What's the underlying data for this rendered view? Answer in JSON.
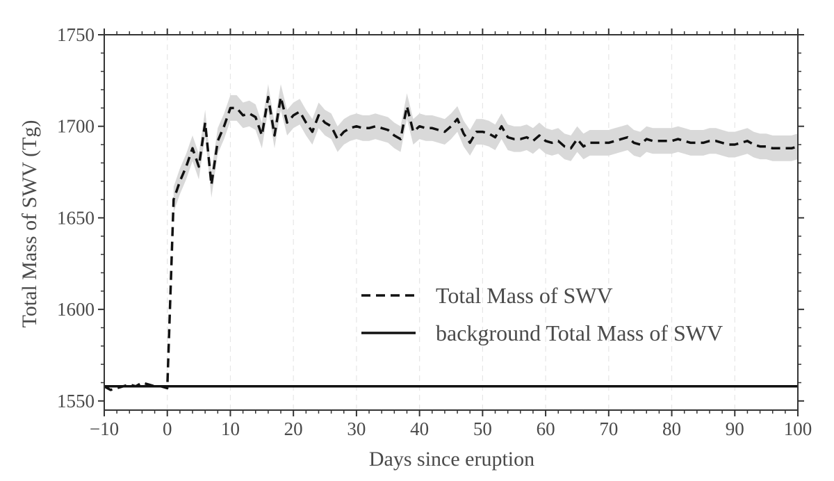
{
  "chart_data": {
    "type": "line",
    "xlabel": "Days since eruption",
    "ylabel": "Total Mass of SWV (Tg)",
    "xlim": [
      -10,
      100
    ],
    "ylim": [
      1545,
      1750
    ],
    "x_ticks": [
      -10,
      0,
      10,
      20,
      30,
      40,
      50,
      60,
      70,
      80,
      90,
      100
    ],
    "x_tick_labels": [
      "−10",
      "0",
      "10",
      "20",
      "30",
      "40",
      "50",
      "60",
      "70",
      "80",
      "90",
      "100"
    ],
    "y_ticks": [
      1550,
      1600,
      1650,
      1700,
      1750
    ],
    "y_tick_labels": [
      "1550",
      "1600",
      "1650",
      "1700",
      "1750"
    ],
    "grid": "vertical dashed, light",
    "legend_position": "lower-right",
    "series": [
      {
        "name": "Total Mass of SWV",
        "style": "dashed",
        "color": "#111111",
        "band_color": "#d9d9d9",
        "x": [
          -10,
          -9,
          -8,
          -7,
          -6,
          -5,
          -4,
          -3,
          -2,
          -1,
          0,
          1,
          2,
          3,
          4,
          5,
          6,
          7,
          8,
          9,
          10,
          11,
          12,
          13,
          14,
          15,
          16,
          17,
          18,
          19,
          20,
          21,
          22,
          23,
          24,
          25,
          26,
          27,
          28,
          29,
          30,
          31,
          32,
          33,
          34,
          35,
          36,
          37,
          38,
          39,
          40,
          41,
          42,
          43,
          44,
          45,
          46,
          47,
          48,
          49,
          50,
          51,
          52,
          53,
          54,
          55,
          56,
          57,
          58,
          59,
          60,
          61,
          62,
          63,
          64,
          65,
          66,
          67,
          68,
          69,
          70,
          71,
          72,
          73,
          74,
          75,
          76,
          77,
          78,
          79,
          80,
          81,
          82,
          83,
          84,
          85,
          86,
          87,
          88,
          89,
          90,
          91,
          92,
          93,
          94,
          95,
          96,
          97,
          98,
          99,
          100
        ],
        "y": [
          1558,
          1556,
          1557,
          1558,
          1559,
          1558,
          1560,
          1559,
          1558,
          1558,
          1557,
          1660,
          1670,
          1678,
          1688,
          1678,
          1702,
          1668,
          1692,
          1700,
          1710,
          1710,
          1706,
          1707,
          1705,
          1695,
          1716,
          1695,
          1716,
          1702,
          1706,
          1708,
          1702,
          1697,
          1706,
          1702,
          1700,
          1693,
          1697,
          1699,
          1700,
          1699,
          1699,
          1700,
          1699,
          1698,
          1695,
          1693,
          1711,
          1697,
          1700,
          1699,
          1699,
          1698,
          1697,
          1700,
          1704,
          1696,
          1691,
          1697,
          1697,
          1696,
          1694,
          1700,
          1694,
          1693,
          1693,
          1694,
          1692,
          1695,
          1692,
          1691,
          1692,
          1689,
          1688,
          1693,
          1689,
          1691,
          1691,
          1691,
          1691,
          1692,
          1693,
          1694,
          1691,
          1690,
          1693,
          1692,
          1692,
          1692,
          1692,
          1693,
          1692,
          1691,
          1691,
          1691,
          1692,
          1692,
          1691,
          1690,
          1690,
          1691,
          1692,
          1690,
          1689,
          1689,
          1688,
          1688,
          1688,
          1688,
          1689
        ],
        "band_halfwidth": 7
      },
      {
        "name": "background Total Mass of SWV",
        "style": "solid",
        "color": "#111111",
        "x": [
          -10,
          100
        ],
        "y": [
          1558,
          1558
        ]
      }
    ]
  }
}
